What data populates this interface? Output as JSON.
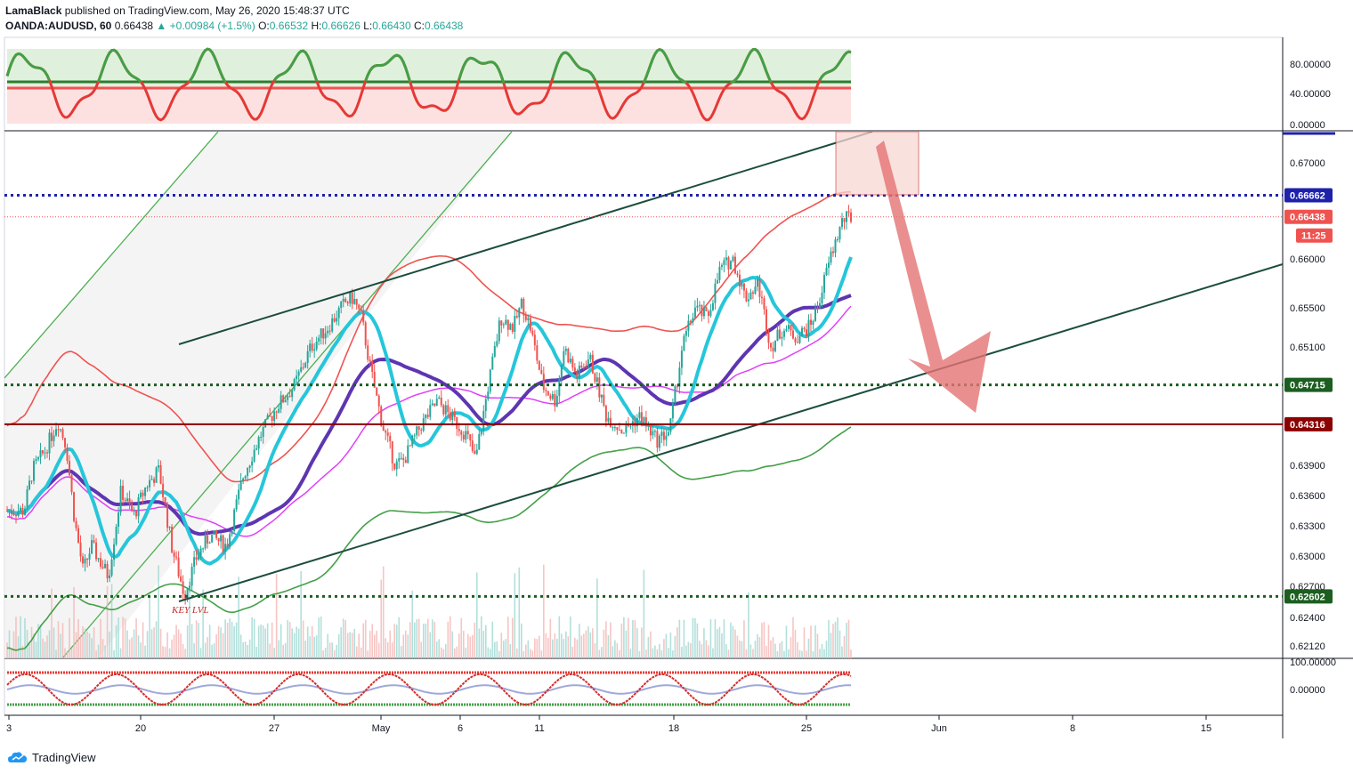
{
  "header": {
    "publisher": "LamaBlack",
    "published_line": "published on TradingView.com, May 26, 2020 15:48:37 UTC",
    "symbol": "OANDA:AUDUSD, 60",
    "last": "0.66438",
    "change": "+0.00984 (+1.5%)",
    "o_label": "O:",
    "o": "0.66532",
    "h_label": "H:",
    "h": "0.66626",
    "l_label": "L:",
    "l": "0.66430",
    "c_label": "C:",
    "c": "0.66438"
  },
  "chart_data": {
    "type": "candlestick",
    "symbol": "OANDA:AUDUSD",
    "x_ticks": [
      "3",
      "20",
      "27",
      "May",
      "6",
      "11",
      "18",
      "25",
      "Jun",
      "8",
      "15"
    ],
    "y_ticks": [
      "0.67000",
      "0.66000",
      "0.65500",
      "0.65100",
      "0.63900",
      "0.63600",
      "0.63300",
      "0.63000",
      "0.62700",
      "0.62400",
      "0.62120"
    ],
    "ylim": [
      0.6195,
      0.6715
    ],
    "price_lines": [
      {
        "value": 0.66662,
        "label": "0.66662",
        "color": "#1e22aa",
        "style": "dotted"
      },
      {
        "value": 0.66438,
        "label": "0.66438",
        "color": "#ef5350",
        "style": "dotted-thin"
      },
      {
        "value": 0.64715,
        "label": "0.64715",
        "color": "#1b5e20",
        "style": "dotted"
      },
      {
        "value": 0.64316,
        "label": "0.64316",
        "color": "#8b0000",
        "style": "solid"
      },
      {
        "value": 0.62602,
        "label": "0.62602",
        "color": "#1b5e20",
        "style": "dotted"
      }
    ],
    "countdown": "11:25",
    "annotation": "KEY LVL",
    "upper_indicator": {
      "ticks": [
        "80.00000",
        "40.00000",
        "0.00000"
      ],
      "ylim": [
        -5,
        100
      ]
    },
    "lower_indicator": {
      "ticks": [
        "100.00000",
        "0.00000"
      ]
    },
    "price_path": [
      [
        0.02,
        0.6345
      ],
      [
        0.03,
        0.6385
      ],
      [
        0.045,
        0.6405
      ],
      [
        0.06,
        0.6435
      ],
      [
        0.07,
        0.641
      ],
      [
        0.08,
        0.6335
      ],
      [
        0.09,
        0.6285
      ],
      [
        0.1,
        0.631
      ],
      [
        0.12,
        0.628
      ],
      [
        0.135,
        0.6365
      ],
      [
        0.15,
        0.634
      ],
      [
        0.165,
        0.637
      ],
      [
        0.18,
        0.6385
      ],
      [
        0.195,
        0.631
      ],
      [
        0.21,
        0.6262
      ],
      [
        0.225,
        0.63
      ],
      [
        0.24,
        0.632
      ],
      [
        0.26,
        0.631
      ],
      [
        0.28,
        0.638
      ],
      [
        0.3,
        0.642
      ],
      [
        0.32,
        0.645
      ],
      [
        0.34,
        0.647
      ],
      [
        0.36,
        0.651
      ],
      [
        0.38,
        0.653
      ],
      [
        0.4,
        0.6555
      ],
      [
        0.41,
        0.656
      ],
      [
        0.42,
        0.654
      ],
      [
        0.43,
        0.649
      ],
      [
        0.445,
        0.643
      ],
      [
        0.46,
        0.639
      ],
      [
        0.47,
        0.6395
      ],
      [
        0.49,
        0.643
      ],
      [
        0.51,
        0.6455
      ],
      [
        0.53,
        0.6435
      ],
      [
        0.545,
        0.642
      ],
      [
        0.555,
        0.6395
      ],
      [
        0.57,
        0.647
      ],
      [
        0.585,
        0.654
      ],
      [
        0.6,
        0.653
      ],
      [
        0.61,
        0.6555
      ],
      [
        0.62,
        0.653
      ],
      [
        0.635,
        0.647
      ],
      [
        0.65,
        0.6455
      ],
      [
        0.66,
        0.651
      ],
      [
        0.675,
        0.648
      ],
      [
        0.69,
        0.65
      ],
      [
        0.71,
        0.644
      ],
      [
        0.73,
        0.6425
      ],
      [
        0.75,
        0.644
      ],
      [
        0.77,
        0.6415
      ],
      [
        0.785,
        0.6425
      ],
      [
        0.8,
        0.651
      ],
      [
        0.815,
        0.655
      ],
      [
        0.83,
        0.654
      ],
      [
        0.845,
        0.659
      ],
      [
        0.86,
        0.66
      ],
      [
        0.875,
        0.656
      ],
      [
        0.89,
        0.6575
      ],
      [
        0.905,
        0.651
      ],
      [
        0.92,
        0.653
      ],
      [
        0.935,
        0.652
      ],
      [
        0.95,
        0.653
      ],
      [
        0.96,
        0.655
      ],
      [
        0.975,
        0.66
      ],
      [
        0.99,
        0.664
      ],
      [
        1.0,
        0.66438
      ]
    ]
  },
  "watermark_text": "TradingView"
}
